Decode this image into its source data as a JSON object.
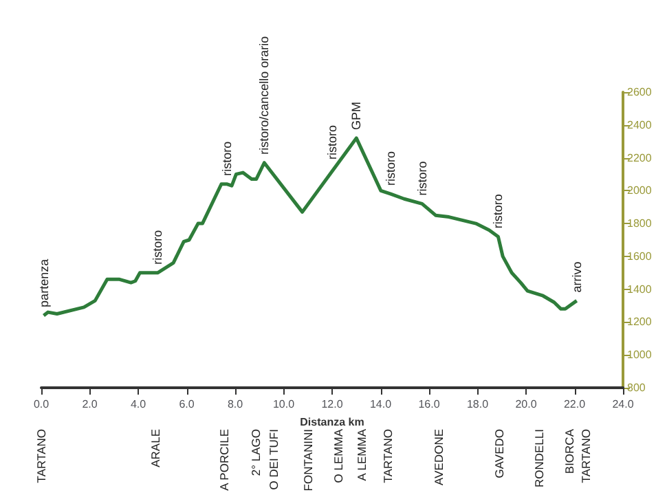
{
  "chart_data": {
    "type": "line",
    "xlabel": "Distanza km",
    "x": [
      0.1,
      0.28,
      0.65,
      1.76,
      2.22,
      2.72,
      3.23,
      3.7,
      3.88,
      4.07,
      4.8,
      5.45,
      5.88,
      6.1,
      6.47,
      6.65,
      7.43,
      7.67,
      7.86,
      8.04,
      8.32,
      8.68,
      8.87,
      9.2,
      10.77,
      13.0,
      14.01,
      14.42,
      14.97,
      15.71,
      16.27,
      16.82,
      17.93,
      18.48,
      18.85,
      19.04,
      19.41,
      19.78,
      20.06,
      20.7,
      21.16,
      21.44,
      21.62,
      22.09
    ],
    "series": [
      {
        "color": "#2e7d3a",
        "values": [
          1240,
          1260,
          1250,
          1290,
          1330,
          1460,
          1460,
          1440,
          1450,
          1500,
          1500,
          1560,
          1690,
          1700,
          1800,
          1800,
          2040,
          2040,
          2030,
          2100,
          2110,
          2070,
          2070,
          2170,
          1870,
          2320,
          2000,
          1980,
          1950,
          1920,
          1850,
          1840,
          1800,
          1760,
          1720,
          1600,
          1500,
          1440,
          1390,
          1360,
          1320,
          1280,
          1280,
          1330
        ]
      }
    ],
    "xlim": [
      0,
      24
    ],
    "xticks": [
      {
        "value": 0,
        "label": "0.0"
      },
      {
        "value": 2,
        "label": "2.0"
      },
      {
        "value": 4,
        "label": "4.0"
      },
      {
        "value": 6,
        "label": "6.0"
      },
      {
        "value": 8,
        "label": "8.0"
      },
      {
        "value": 10,
        "label": "10.0"
      },
      {
        "value": 12,
        "label": "12.0"
      },
      {
        "value": 14,
        "label": "14.0"
      },
      {
        "value": 16,
        "label": "16.0"
      },
      {
        "value": 18,
        "label": "18.0"
      },
      {
        "value": 20,
        "label": "20.0"
      },
      {
        "value": 22,
        "label": "22.0"
      },
      {
        "value": 24,
        "label": "24.0"
      }
    ],
    "ylim": [
      800,
      2600
    ],
    "yticks": [
      800,
      1000,
      1200,
      1400,
      1600,
      1800,
      2000,
      2200,
      2400,
      2600
    ],
    "grid": false,
    "marker": "none",
    "line_style": "solid",
    "annotations": [
      {
        "text": "partenza",
        "x": 0.1,
        "y": 1240
      },
      {
        "text": "ristoro",
        "x": 4.8,
        "y": 1500
      },
      {
        "text": "ristoro",
        "x": 7.67,
        "y": 2040
      },
      {
        "text": "ristoro/cancello orario",
        "x": 9.2,
        "y": 2170
      },
      {
        "text": "ristoro",
        "x": 12.0,
        "y": 2140
      },
      {
        "text": "GPM",
        "x": 13.0,
        "y": 2320
      },
      {
        "text": "ristoro",
        "x": 14.42,
        "y": 1980
      },
      {
        "text": "ristoro",
        "x": 15.71,
        "y": 1920
      },
      {
        "text": "ristoro",
        "x": 18.85,
        "y": 1720
      },
      {
        "text": "arrivo",
        "x": 22.09,
        "y": 1330
      },
      "TARTANO",
      "ARALE",
      "A PORCILE",
      "2° LAGO",
      "O DEI TUFI",
      "FONTANINI",
      "O LEMMA",
      "A LEMMA",
      "TARTANO",
      "AVEDONE",
      "GAVEDO",
      "RONDELLI",
      "BIORCA",
      "TARTANO"
    ]
  }
}
